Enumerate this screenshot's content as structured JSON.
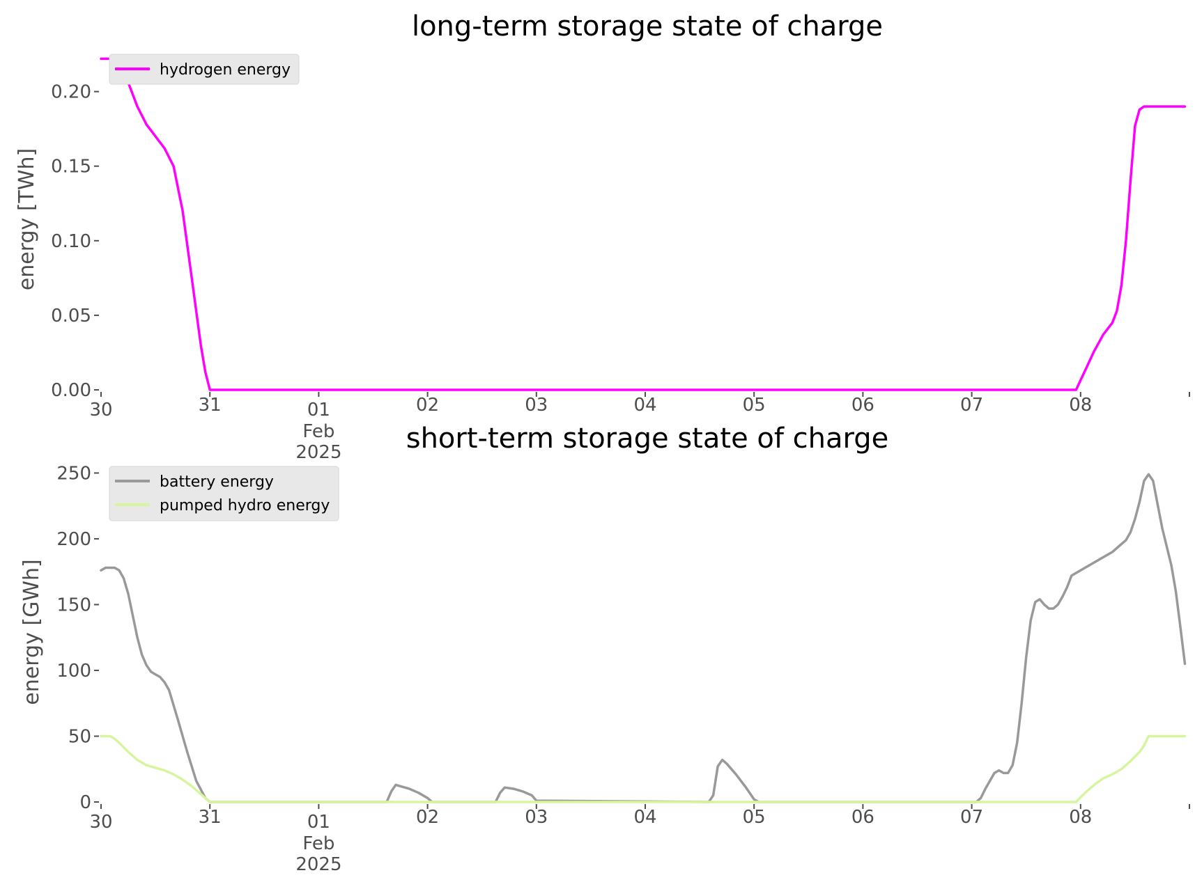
{
  "chart_data": [
    {
      "type": "line",
      "title": "long-term storage state of charge",
      "xlabel": "",
      "ylabel": "energy [TWh]",
      "x_axis_start": "2025-01-30 00:00",
      "x_axis_end": "2025-02-08 23:00",
      "xlim": [
        "2025-01-30 00:00",
        "2025-02-08 23:00"
      ],
      "x_ticks": [
        {
          "date": "2025-01-30",
          "label": "30"
        },
        {
          "date": "2025-01-31",
          "label": "31"
        },
        {
          "date": "2025-02-01",
          "label": "01"
        },
        {
          "date": "2025-02-02",
          "label": "02"
        },
        {
          "date": "2025-02-03",
          "label": "03"
        },
        {
          "date": "2025-02-04",
          "label": "04"
        },
        {
          "date": "2025-02-05",
          "label": "05"
        },
        {
          "date": "2025-02-06",
          "label": "06"
        },
        {
          "date": "2025-02-07",
          "label": "07"
        },
        {
          "date": "2025-02-08",
          "label": "08"
        }
      ],
      "x_tick_sublabels": [
        "Feb",
        "2025"
      ],
      "ylim": [
        0,
        0.225
      ],
      "y_ticks": [
        0,
        0.05,
        0.1,
        0.15,
        0.2
      ],
      "y_tick_labels": [
        "0.00",
        "0.05",
        "0.10",
        "0.15",
        "0.20"
      ],
      "grid": false,
      "legend_position": "top-left",
      "series": [
        {
          "name": "hydrogen energy",
          "color": "#ff00ff",
          "points": [
            [
              "2025-01-30 00:00",
              0.222
            ],
            [
              "2025-01-30 02:00",
              0.222
            ],
            [
              "2025-01-30 04:00",
              0.217
            ],
            [
              "2025-01-30 06:00",
              0.206
            ],
            [
              "2025-01-30 08:00",
              0.19
            ],
            [
              "2025-01-30 10:00",
              0.178
            ],
            [
              "2025-01-30 12:00",
              0.17
            ],
            [
              "2025-01-30 14:00",
              0.162
            ],
            [
              "2025-01-30 16:00",
              0.15
            ],
            [
              "2025-01-30 18:00",
              0.12
            ],
            [
              "2025-01-30 20:00",
              0.075
            ],
            [
              "2025-01-30 22:00",
              0.03
            ],
            [
              "2025-01-30 23:00",
              0.012
            ],
            [
              "2025-01-31 00:00",
              0.0
            ],
            [
              "2025-02-07 23:00",
              0.0
            ],
            [
              "2025-02-08 01:00",
              0.013
            ],
            [
              "2025-02-08 03:00",
              0.026
            ],
            [
              "2025-02-08 05:00",
              0.037
            ],
            [
              "2025-02-08 07:00",
              0.045
            ],
            [
              "2025-02-08 08:00",
              0.053
            ],
            [
              "2025-02-08 09:00",
              0.07
            ],
            [
              "2025-02-08 10:00",
              0.1
            ],
            [
              "2025-02-08 11:00",
              0.14
            ],
            [
              "2025-02-08 12:00",
              0.177
            ],
            [
              "2025-02-08 13:00",
              0.188
            ],
            [
              "2025-02-08 14:00",
              0.19
            ],
            [
              "2025-02-08 23:00",
              0.19
            ]
          ]
        }
      ]
    },
    {
      "type": "line",
      "title": "short-term storage state of charge",
      "xlabel": "",
      "ylabel": "energy [GWh]",
      "x_axis_start": "2025-01-30 00:00",
      "x_axis_end": "2025-02-08 23:00",
      "xlim": [
        "2025-01-30 00:00",
        "2025-02-08 23:00"
      ],
      "x_ticks": [
        {
          "date": "2025-01-30",
          "label": "30"
        },
        {
          "date": "2025-01-31",
          "label": "31"
        },
        {
          "date": "2025-02-01",
          "label": "01"
        },
        {
          "date": "2025-02-02",
          "label": "02"
        },
        {
          "date": "2025-02-03",
          "label": "03"
        },
        {
          "date": "2025-02-04",
          "label": "04"
        },
        {
          "date": "2025-02-05",
          "label": "05"
        },
        {
          "date": "2025-02-06",
          "label": "06"
        },
        {
          "date": "2025-02-07",
          "label": "07"
        },
        {
          "date": "2025-02-08",
          "label": "08"
        }
      ],
      "x_tick_sublabels": [
        "Feb",
        "2025"
      ],
      "ylim": [
        0,
        255
      ],
      "y_ticks": [
        0,
        50,
        100,
        150,
        200,
        250
      ],
      "y_tick_labels": [
        "0",
        "50",
        "100",
        "150",
        "200",
        "250"
      ],
      "grid": false,
      "legend_position": "top-left",
      "series": [
        {
          "name": "battery energy",
          "color": "#999999",
          "points": [
            [
              "2025-01-30 00:00",
              176
            ],
            [
              "2025-01-30 01:00",
              178
            ],
            [
              "2025-01-30 03:00",
              178
            ],
            [
              "2025-01-30 04:00",
              176
            ],
            [
              "2025-01-30 05:00",
              170
            ],
            [
              "2025-01-30 06:00",
              158
            ],
            [
              "2025-01-30 08:00",
              125
            ],
            [
              "2025-01-30 09:00",
              112
            ],
            [
              "2025-01-30 10:00",
              104
            ],
            [
              "2025-01-30 11:00",
              99
            ],
            [
              "2025-01-30 12:00",
              97
            ],
            [
              "2025-01-30 13:00",
              95
            ],
            [
              "2025-01-30 14:00",
              91
            ],
            [
              "2025-01-30 15:00",
              85
            ],
            [
              "2025-01-30 17:00",
              62
            ],
            [
              "2025-01-30 19:00",
              38
            ],
            [
              "2025-01-30 21:00",
              16
            ],
            [
              "2025-01-30 23:00",
              3
            ],
            [
              "2025-01-31 00:00",
              0
            ],
            [
              "2025-02-01 15:00",
              0
            ],
            [
              "2025-02-01 16:00",
              8
            ],
            [
              "2025-02-01 17:00",
              13
            ],
            [
              "2025-02-01 18:00",
              12
            ],
            [
              "2025-02-01 20:00",
              10
            ],
            [
              "2025-02-01 22:00",
              7
            ],
            [
              "2025-02-02 00:00",
              3
            ],
            [
              "2025-02-02 01:00",
              0
            ],
            [
              "2025-02-02 15:00",
              0
            ],
            [
              "2025-02-02 16:00",
              7
            ],
            [
              "2025-02-02 17:00",
              11
            ],
            [
              "2025-02-02 19:00",
              10
            ],
            [
              "2025-02-02 21:00",
              8
            ],
            [
              "2025-02-02 23:00",
              5
            ],
            [
              "2025-02-03 00:00",
              1
            ],
            [
              "2025-02-04 14:00",
              0
            ],
            [
              "2025-02-04 15:00",
              5
            ],
            [
              "2025-02-04 16:00",
              27
            ],
            [
              "2025-02-04 17:00",
              32
            ],
            [
              "2025-02-04 18:00",
              29
            ],
            [
              "2025-02-04 20:00",
              21
            ],
            [
              "2025-02-04 22:00",
              12
            ],
            [
              "2025-02-05 00:00",
              2
            ],
            [
              "2025-02-05 01:00",
              0
            ],
            [
              "2025-02-07 01:00",
              0
            ],
            [
              "2025-02-07 02:00",
              3
            ],
            [
              "2025-02-07 03:00",
              10
            ],
            [
              "2025-02-07 05:00",
              22
            ],
            [
              "2025-02-07 06:00",
              24
            ],
            [
              "2025-02-07 07:00",
              22
            ],
            [
              "2025-02-07 08:00",
              22
            ],
            [
              "2025-02-07 09:00",
              28
            ],
            [
              "2025-02-07 10:00",
              45
            ],
            [
              "2025-02-07 11:00",
              75
            ],
            [
              "2025-02-07 12:00",
              110
            ],
            [
              "2025-02-07 13:00",
              138
            ],
            [
              "2025-02-07 14:00",
              152
            ],
            [
              "2025-02-07 15:00",
              154
            ],
            [
              "2025-02-07 16:00",
              150
            ],
            [
              "2025-02-07 17:00",
              147
            ],
            [
              "2025-02-07 18:00",
              147
            ],
            [
              "2025-02-07 19:00",
              150
            ],
            [
              "2025-02-07 20:00",
              156
            ],
            [
              "2025-02-07 21:00",
              163
            ],
            [
              "2025-02-07 22:00",
              172
            ],
            [
              "2025-02-08 00:00",
              176
            ],
            [
              "2025-02-08 04:00",
              184
            ],
            [
              "2025-02-08 07:00",
              190
            ],
            [
              "2025-02-08 09:00",
              196
            ],
            [
              "2025-02-08 10:00",
              199
            ],
            [
              "2025-02-08 11:00",
              205
            ],
            [
              "2025-02-08 12:00",
              215
            ],
            [
              "2025-02-08 13:00",
              228
            ],
            [
              "2025-02-08 14:00",
              244
            ],
            [
              "2025-02-08 15:00",
              249
            ],
            [
              "2025-02-08 16:00",
              244
            ],
            [
              "2025-02-08 17:00",
              226
            ],
            [
              "2025-02-08 18:00",
              208
            ],
            [
              "2025-02-08 20:00",
              180
            ],
            [
              "2025-02-08 21:00",
              160
            ],
            [
              "2025-02-08 22:00",
              133
            ],
            [
              "2025-02-08 23:00",
              105
            ]
          ]
        },
        {
          "name": "pumped hydro energy",
          "color": "#d6f59e",
          "points": [
            [
              "2025-01-30 00:00",
              50
            ],
            [
              "2025-01-30 02:00",
              50
            ],
            [
              "2025-01-30 03:00",
              48
            ],
            [
              "2025-01-30 04:00",
              45
            ],
            [
              "2025-01-30 06:00",
              38
            ],
            [
              "2025-01-30 08:00",
              32
            ],
            [
              "2025-01-30 10:00",
              28
            ],
            [
              "2025-01-30 12:00",
              26
            ],
            [
              "2025-01-30 14:00",
              24
            ],
            [
              "2025-01-30 16:00",
              21
            ],
            [
              "2025-01-30 18:00",
              17
            ],
            [
              "2025-01-30 20:00",
              12
            ],
            [
              "2025-01-30 22:00",
              6
            ],
            [
              "2025-01-31 00:00",
              0
            ],
            [
              "2025-02-07 23:00",
              0
            ],
            [
              "2025-02-08 01:00",
              7
            ],
            [
              "2025-02-08 03:00",
              13
            ],
            [
              "2025-02-08 05:00",
              18
            ],
            [
              "2025-02-08 07:00",
              21
            ],
            [
              "2025-02-08 09:00",
              25
            ],
            [
              "2025-02-08 11:00",
              31
            ],
            [
              "2025-02-08 13:00",
              38
            ],
            [
              "2025-02-08 14:00",
              43
            ],
            [
              "2025-02-08 15:00",
              50
            ],
            [
              "2025-02-08 23:00",
              50
            ]
          ]
        }
      ]
    }
  ]
}
